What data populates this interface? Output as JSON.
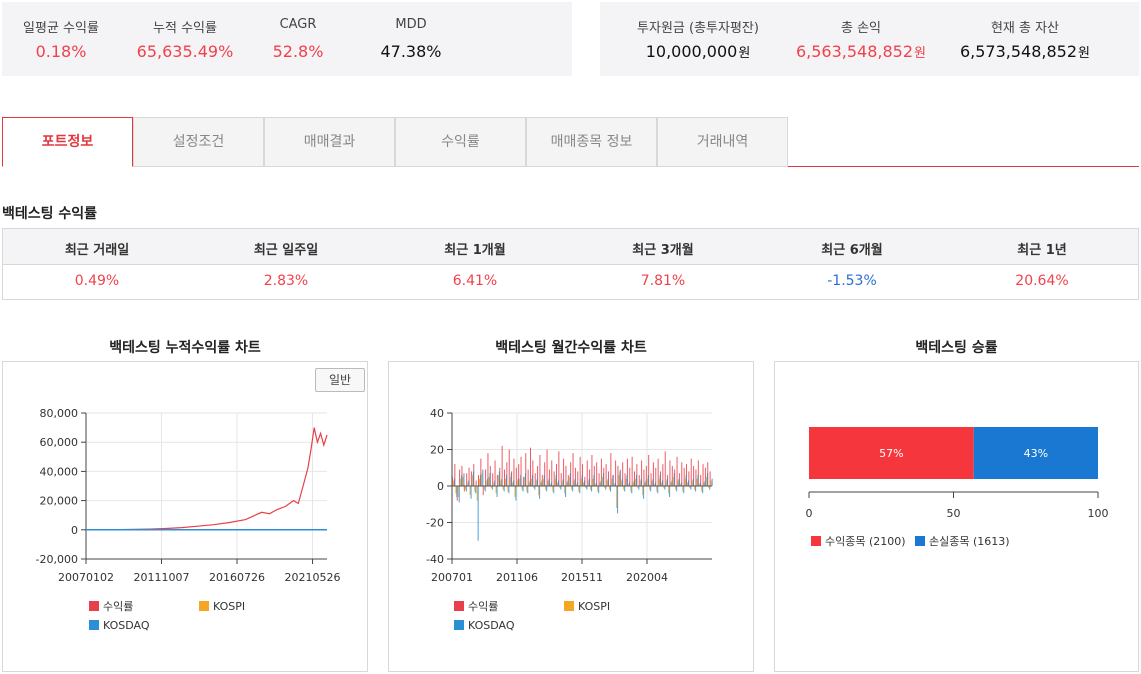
{
  "summary_left": [
    {
      "label": "일평균 수익률",
      "value": "0.18%",
      "tone": "red"
    },
    {
      "label": "누적 수익률",
      "value": "65,635.49%",
      "tone": "red"
    },
    {
      "label": "CAGR",
      "value": "52.8%",
      "tone": "red"
    },
    {
      "label": "MDD",
      "value": "47.38%",
      "tone": "black"
    }
  ],
  "summary_right": [
    {
      "label": "투자원금 (총투자평잔)",
      "value": "10,000,000",
      "unit": "원",
      "tone": "black"
    },
    {
      "label": "총 손익",
      "value": "6,563,548,852",
      "unit": "원",
      "tone": "red"
    },
    {
      "label": "현재 총 자산",
      "value": "6,573,548,852",
      "unit": "원",
      "tone": "black"
    }
  ],
  "tabs": [
    "포트정보",
    "설정조건",
    "매매결과",
    "수익률",
    "매매종목 정보",
    "거래내역"
  ],
  "active_tab": 0,
  "returns_section": {
    "title": "백테스팅 수익률",
    "headers": [
      "최근 거래일",
      "최근 일주일",
      "최근 1개월",
      "최근 3개월",
      "최근 6개월",
      "최근 1년"
    ],
    "values": [
      "0.49%",
      "2.83%",
      "6.41%",
      "7.81%",
      "-1.53%",
      "20.64%"
    ],
    "tones": [
      "red",
      "red",
      "red",
      "red",
      "blue",
      "red"
    ]
  },
  "cumulative_chart": {
    "title": "백테스팅 누적수익률 차트",
    "mode_button": "일반"
  },
  "monthly_chart": {
    "title": "백테스팅 월간수익률 차트"
  },
  "winrate_chart": {
    "title": "백테스팅 승률"
  },
  "colors": {
    "red": "#f0424b",
    "blue": "#2a6fd4",
    "kospi": "#f5a623",
    "kosdaq": "#2b8fd6",
    "win": "#f5363d",
    "loss": "#1a78d2"
  },
  "chart_data": [
    {
      "type": "line",
      "title": "백테스팅 누적수익률 차트",
      "x_ticks": [
        "20070102",
        "20111007",
        "20160726",
        "20210526"
      ],
      "ylim": [
        -20000,
        80000
      ],
      "y_ticks": [
        "-20,000",
        "0",
        "20,000",
        "40,000",
        "60,000",
        "80,000"
      ],
      "y_tick_values": [
        -20000,
        0,
        20000,
        40000,
        60000,
        80000
      ],
      "grid": true,
      "legend": "bottom-left",
      "series": [
        {
          "name": "수익률",
          "color": "#e8404a",
          "x": [
            2007.0,
            2008.0,
            2009.0,
            2010.0,
            2011.0,
            2012.0,
            2013.0,
            2014.0,
            2015.0,
            2016.0,
            2017.0,
            2017.5,
            2018.0,
            2018.5,
            2019.0,
            2019.5,
            2020.0,
            2020.3,
            2020.6,
            2020.9,
            2021.1,
            2021.3,
            2021.5,
            2021.7,
            2021.9,
            2022.1
          ],
          "values": [
            0,
            50,
            150,
            300,
            500,
            900,
            1500,
            2500,
            3500,
            5000,
            7000,
            9500,
            12000,
            11000,
            14000,
            16000,
            20000,
            18000,
            30000,
            42000,
            55000,
            70000,
            60000,
            66000,
            58000,
            65000
          ]
        },
        {
          "name": "KOSPI",
          "color": "#f5a623",
          "x": [
            2007.0,
            2022.1
          ],
          "values": [
            0,
            0
          ]
        },
        {
          "name": "KOSDAQ",
          "color": "#2b8fd6",
          "x": [
            2007.0,
            2022.1
          ],
          "values": [
            0,
            0
          ]
        }
      ]
    },
    {
      "type": "bar",
      "title": "백테스팅 월간수익률 차트",
      "x_ticks": [
        "200701",
        "201106",
        "201511",
        "202004"
      ],
      "ylim": [
        -40,
        40
      ],
      "y_ticks": [
        "-40",
        "-20",
        "0",
        "20",
        "40"
      ],
      "y_tick_values": [
        -40,
        -20,
        0,
        20,
        40
      ],
      "grid": true,
      "legend": "bottom-left",
      "series": [
        {
          "name": "수익률",
          "color": "#e8404a",
          "values": [
            5,
            12,
            -8,
            9,
            11,
            -3,
            7,
            10,
            8,
            12,
            3,
            6,
            15,
            -5,
            9,
            18,
            11,
            7,
            14,
            6,
            10,
            22,
            9,
            13,
            20,
            8,
            15,
            10,
            12,
            16,
            5,
            18,
            9,
            21,
            14,
            7,
            11,
            17,
            6,
            13,
            20,
            9,
            14,
            8,
            12,
            19,
            7,
            15,
            11,
            6,
            13,
            18,
            10,
            8,
            16,
            12,
            5,
            14,
            9,
            17,
            11,
            13,
            7,
            15,
            10,
            12,
            8,
            18,
            6,
            14,
            11,
            9,
            13,
            7,
            15,
            10,
            16,
            8,
            12,
            6,
            14,
            9,
            11,
            17,
            7,
            13,
            10,
            15,
            8,
            12,
            19,
            6,
            14,
            11,
            9,
            16,
            7,
            13,
            10,
            12,
            8,
            15,
            11,
            9,
            14,
            6,
            12,
            10,
            13,
            8
          ]
        },
        {
          "name": "KOSPI",
          "color": "#f5a623",
          "values": [
            3,
            -4,
            -6,
            4,
            5,
            -2,
            2,
            -5,
            6,
            -3,
            -8,
            4,
            7,
            -2,
            3,
            5,
            -1,
            2,
            -4,
            6,
            3,
            -2,
            4,
            -3,
            5,
            2,
            -6,
            3,
            4,
            -2,
            5,
            -3,
            2,
            4,
            -1,
            3,
            -5,
            2,
            4,
            -2,
            3,
            1,
            -3,
            4,
            2,
            -1,
            3,
            -4,
            2,
            5,
            -2,
            3,
            1,
            -3,
            4,
            2,
            -1,
            3,
            -2,
            4,
            1,
            -3,
            2,
            5,
            -1,
            3,
            -2,
            4,
            1,
            -12,
            6,
            3,
            -2,
            4,
            1,
            -3,
            2,
            4,
            -1,
            3,
            -5,
            2,
            4,
            -2,
            3,
            1,
            -3,
            4,
            2,
            -1,
            3,
            -4,
            2,
            5,
            -2,
            3,
            1,
            -3,
            4,
            2,
            -1,
            3,
            -2,
            4,
            1,
            -3,
            2,
            5,
            -1,
            3
          ]
        },
        {
          "name": "KOSDAQ",
          "color": "#2b8fd6",
          "values": [
            4,
            -6,
            -9,
            6,
            7,
            -3,
            3,
            -7,
            8,
            -4,
            -30,
            6,
            9,
            -3,
            4,
            7,
            -2,
            3,
            -6,
            8,
            4,
            -3,
            6,
            -4,
            7,
            3,
            -8,
            4,
            6,
            -3,
            7,
            -4,
            3,
            6,
            -2,
            4,
            -7,
            3,
            6,
            -3,
            4,
            2,
            -4,
            6,
            3,
            -2,
            4,
            -6,
            3,
            7,
            -3,
            4,
            2,
            -4,
            6,
            3,
            -2,
            4,
            -3,
            6,
            2,
            -4,
            3,
            7,
            -2,
            4,
            -3,
            6,
            2,
            -15,
            8,
            4,
            -3,
            6,
            2,
            -4,
            3,
            6,
            -2,
            4,
            -7,
            3,
            6,
            -3,
            4,
            2,
            -4,
            6,
            3,
            -2,
            4,
            -6,
            3,
            7,
            -3,
            4,
            2,
            -4,
            6,
            3,
            -2,
            4,
            -3,
            6,
            2,
            -4,
            3,
            7,
            -2,
            4
          ]
        }
      ]
    },
    {
      "type": "bar",
      "title": "백테스팅 승률",
      "orientation": "horizontal-stacked",
      "xlim": [
        0,
        100
      ],
      "x_ticks": [
        "0",
        "50",
        "100"
      ],
      "x_tick_values": [
        0,
        50,
        100
      ],
      "grid": false,
      "legend": "bottom-left",
      "series": [
        {
          "name": "수익종목 (2100)",
          "value": 57,
          "label": "57%",
          "color": "#f5363d"
        },
        {
          "name": "손실종목 (1613)",
          "value": 43,
          "label": "43%",
          "color": "#1a78d2"
        }
      ]
    }
  ]
}
